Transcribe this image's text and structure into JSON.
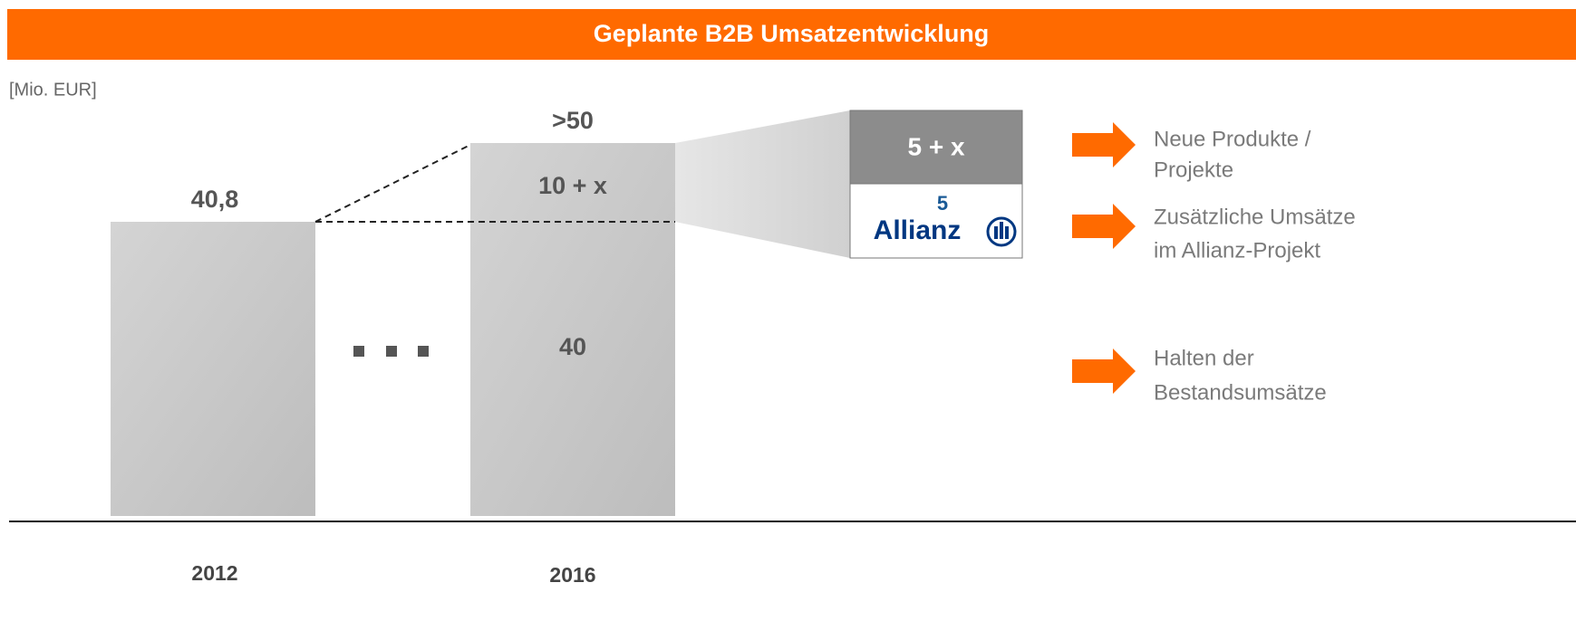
{
  "header": {
    "title": "Geplante B2B Umsatzentwicklung"
  },
  "unit": "[Mio. EUR]",
  "bars": [
    {
      "year": "2012",
      "total": "40,8"
    },
    {
      "year": "2016",
      "total": ">50",
      "segments": [
        "40",
        "10 + x"
      ]
    }
  ],
  "breakdown": {
    "top": "5 + x",
    "bottom_value": "5",
    "logo": "Allianz"
  },
  "notes": [
    [
      "Neue Produkte /",
      "Projekte"
    ],
    [
      "Zusätzliche Umsätze",
      "im Allianz-Projekt"
    ],
    [
      "Halten der",
      "Bestandsumsätze"
    ]
  ]
}
